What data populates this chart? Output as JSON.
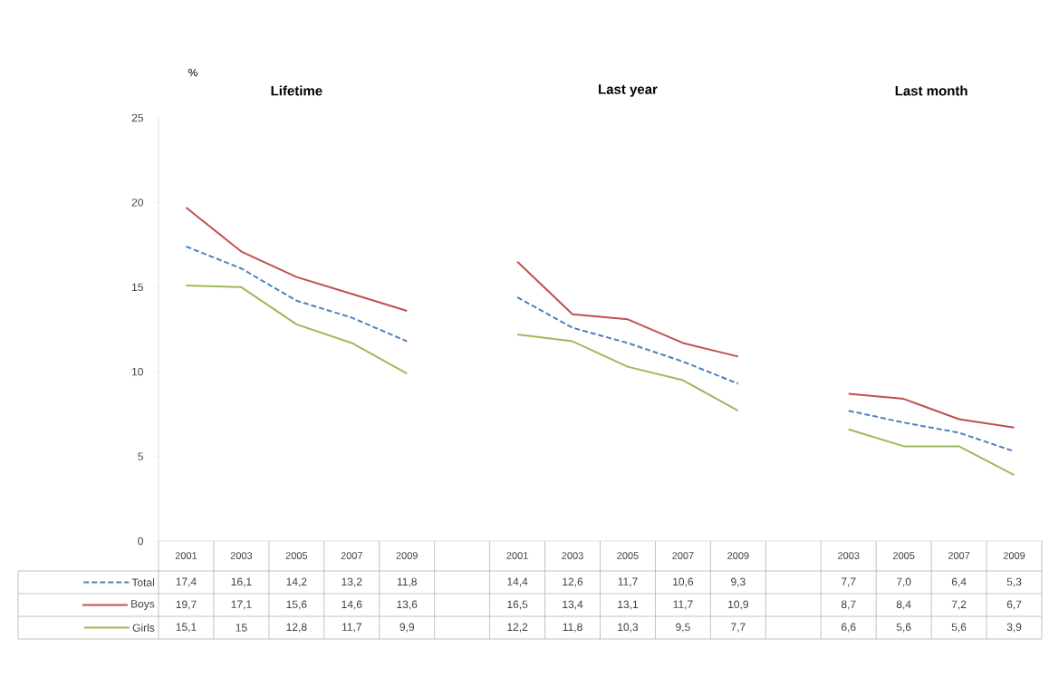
{
  "chart_data": {
    "type": "line",
    "ylabel": "%",
    "annotations": [
      "Lifetime",
      "Last year",
      "Last month"
    ],
    "categories": [
      "2001",
      "2003",
      "2005",
      "2007",
      "2009",
      null,
      "2001",
      "2003",
      "2005",
      "2007",
      "2009",
      null,
      "2003",
      "2005",
      "2007",
      "2009"
    ],
    "ylim": [
      0,
      25
    ],
    "yticks": [
      0,
      5,
      10,
      15,
      20,
      25
    ],
    "legend": "bottom",
    "series": [
      {
        "name": "Total",
        "color": "#4f81bd",
        "line_style": "dashed",
        "values": [
          17.4,
          16.1,
          14.2,
          13.2,
          11.8,
          null,
          14.4,
          12.6,
          11.7,
          10.6,
          9.3,
          null,
          7.7,
          7.0,
          6.4,
          5.3
        ],
        "value_labels": [
          "17,4",
          "16,1",
          "14,2",
          "13,2",
          "11,8",
          null,
          "14,4",
          "12,6",
          "11,7",
          "10,6",
          "9,3",
          null,
          "7,7",
          "7,0",
          "6,4",
          "5,3"
        ]
      },
      {
        "name": "Boys",
        "color": "#c0504d",
        "line_style": "solid",
        "values": [
          19.7,
          17.1,
          15.6,
          14.6,
          13.6,
          null,
          16.5,
          13.4,
          13.1,
          11.7,
          10.9,
          null,
          8.7,
          8.4,
          7.2,
          6.7
        ],
        "value_labels": [
          "19,7",
          "17,1",
          "15,6",
          "14,6",
          "13,6",
          null,
          "16,5",
          "13,4",
          "13,1",
          "11,7",
          "10,9",
          null,
          "8,7",
          "8,4",
          "7,2",
          "6,7"
        ]
      },
      {
        "name": "Girls",
        "color": "#9bbb59",
        "line_style": "solid",
        "values": [
          15.1,
          15,
          12.8,
          11.7,
          9.9,
          null,
          12.2,
          11.8,
          10.3,
          9.5,
          7.7,
          null,
          6.6,
          5.6,
          5.6,
          3.9
        ],
        "value_labels": [
          "15,1",
          "15",
          "12,8",
          "11,7",
          "9,9",
          null,
          "12,2",
          "11,8",
          "10,3",
          "9,5",
          "7,7",
          null,
          "6,6",
          "5,6",
          "5,6",
          "3,9"
        ]
      }
    ]
  }
}
